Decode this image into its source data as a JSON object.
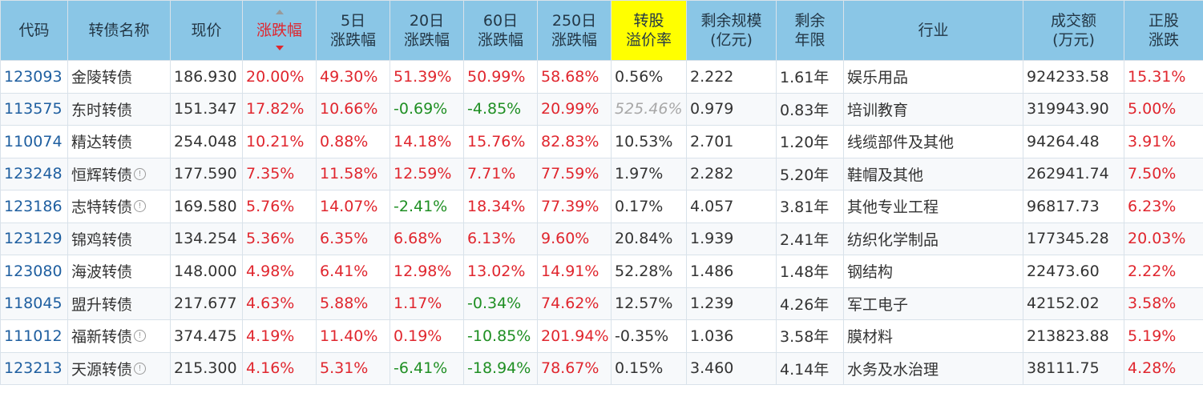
{
  "header": {
    "code": "代码",
    "name": "转债名称",
    "price": "现价",
    "change": "涨跌幅",
    "change5": [
      "5日",
      "涨跌幅"
    ],
    "change20": [
      "20日",
      "涨跌幅"
    ],
    "change60": [
      "60日",
      "涨跌幅"
    ],
    "change250": [
      "250日",
      "涨跌幅"
    ],
    "premium": [
      "转股",
      "溢价率"
    ],
    "remaining": [
      "剩余规模",
      "(亿元)"
    ],
    "years": [
      "剩余",
      "年限"
    ],
    "industry": "行业",
    "volume": [
      "成交额",
      "(万元)"
    ],
    "stock_change": [
      "正股",
      "涨跌"
    ]
  },
  "colors": {
    "header_bg": "#8ac6e6",
    "highlight": "#ffff00",
    "up": "#e0262e",
    "down": "#1f8f23",
    "code": "#1f5fa0"
  },
  "rows": [
    {
      "code": "123093",
      "name": "金陵转债",
      "info": false,
      "price": "186.930",
      "change": "20.00%",
      "c5": "49.30%",
      "c20": "51.39%",
      "c60": "50.99%",
      "c250": "58.68%",
      "premium": "0.56%",
      "remaining": "2.222",
      "years": "1.61年",
      "industry": "娱乐用品",
      "volume": "924233.58",
      "stock": "15.31%"
    },
    {
      "code": "113575",
      "name": "东时转债",
      "info": false,
      "price": "151.347",
      "change": "17.82%",
      "c5": "10.66%",
      "c20": "-0.69%",
      "c60": "-4.85%",
      "c250": "20.99%",
      "premium": "525.46%",
      "remaining": "0.979",
      "years": "0.83年",
      "industry": "培训教育",
      "volume": "319943.90",
      "stock": "5.00%"
    },
    {
      "code": "110074",
      "name": "精达转债",
      "info": false,
      "price": "254.048",
      "change": "10.21%",
      "c5": "0.88%",
      "c20": "14.18%",
      "c60": "15.76%",
      "c250": "82.83%",
      "premium": "10.53%",
      "remaining": "2.701",
      "years": "1.20年",
      "industry": "线缆部件及其他",
      "volume": "94264.48",
      "stock": "3.91%"
    },
    {
      "code": "123248",
      "name": "恒辉转债",
      "info": true,
      "price": "177.590",
      "change": "7.35%",
      "c5": "11.58%",
      "c20": "12.59%",
      "c60": "7.71%",
      "c250": "77.59%",
      "premium": "1.97%",
      "remaining": "2.282",
      "years": "5.20年",
      "industry": "鞋帽及其他",
      "volume": "262941.74",
      "stock": "7.50%"
    },
    {
      "code": "123186",
      "name": "志特转债",
      "info": true,
      "price": "169.580",
      "change": "5.76%",
      "c5": "14.07%",
      "c20": "-2.41%",
      "c60": "18.34%",
      "c250": "77.39%",
      "premium": "0.17%",
      "remaining": "4.057",
      "years": "3.81年",
      "industry": "其他专业工程",
      "volume": "96817.73",
      "stock": "6.23%"
    },
    {
      "code": "123129",
      "name": "锦鸡转债",
      "info": false,
      "price": "134.254",
      "change": "5.36%",
      "c5": "6.35%",
      "c20": "6.68%",
      "c60": "6.13%",
      "c250": "9.60%",
      "premium": "20.84%",
      "remaining": "1.939",
      "years": "2.41年",
      "industry": "纺织化学制品",
      "volume": "177345.28",
      "stock": "20.03%"
    },
    {
      "code": "123080",
      "name": "海波转债",
      "info": false,
      "price": "148.000",
      "change": "4.98%",
      "c5": "6.41%",
      "c20": "12.98%",
      "c60": "13.02%",
      "c250": "14.91%",
      "premium": "52.28%",
      "remaining": "1.486",
      "years": "1.48年",
      "industry": "钢结构",
      "volume": "22473.60",
      "stock": "2.22%"
    },
    {
      "code": "118045",
      "name": "盟升转债",
      "info": false,
      "price": "217.677",
      "change": "4.63%",
      "c5": "5.88%",
      "c20": "1.17%",
      "c60": "-0.34%",
      "c250": "74.62%",
      "premium": "12.57%",
      "remaining": "1.239",
      "years": "4.26年",
      "industry": "军工电子",
      "volume": "42152.02",
      "stock": "3.58%"
    },
    {
      "code": "111012",
      "name": "福新转债",
      "info": true,
      "price": "374.475",
      "change": "4.19%",
      "c5": "11.40%",
      "c20": "0.19%",
      "c60": "-10.85%",
      "c250": "201.94%",
      "premium": "-0.35%",
      "remaining": "1.036",
      "years": "3.58年",
      "industry": "膜材料",
      "volume": "213823.88",
      "stock": "5.19%"
    },
    {
      "code": "123213",
      "name": "天源转债",
      "info": true,
      "price": "215.300",
      "change": "4.16%",
      "c5": "5.31%",
      "c20": "-6.41%",
      "c60": "-18.94%",
      "c250": "78.67%",
      "premium": "0.15%",
      "remaining": "3.460",
      "years": "4.14年",
      "industry": "水务及水治理",
      "volume": "38111.75",
      "stock": "4.28%"
    }
  ]
}
